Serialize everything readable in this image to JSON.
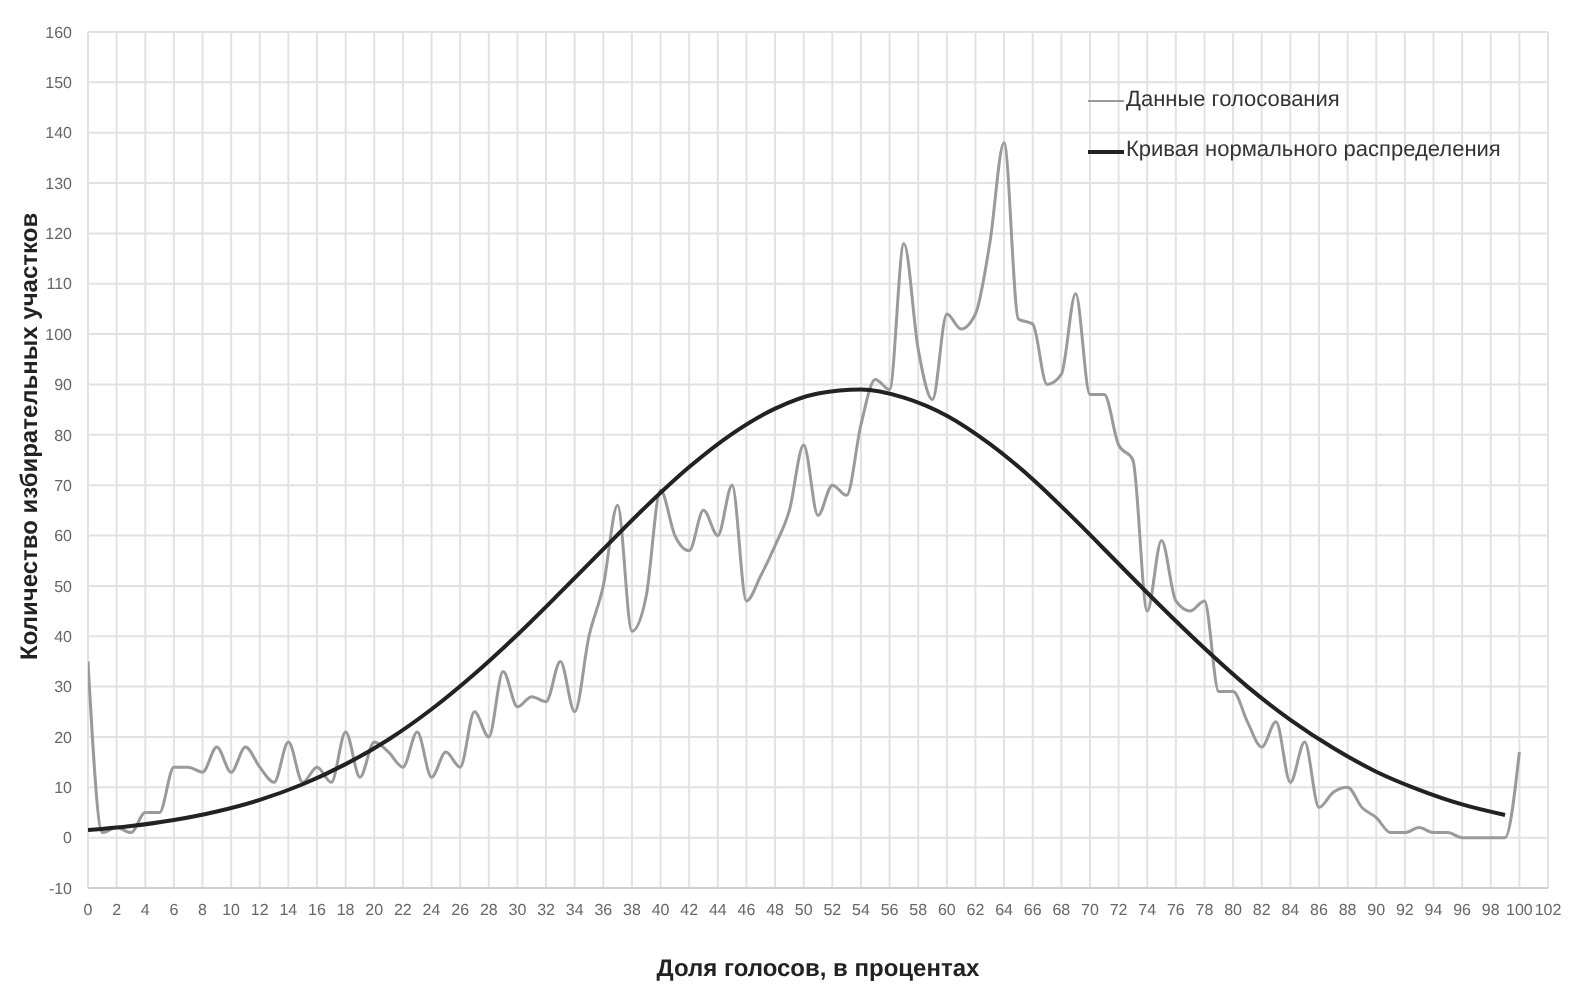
{
  "chart_data": {
    "type": "line",
    "xlabel": "Доля голосов, в процентах",
    "ylabel": "Количество избирательных участков",
    "series": [
      {
        "name": "Данные голосования",
        "color": "#9a9a9a",
        "x": [
          0,
          1,
          2,
          3,
          4,
          5,
          6,
          7,
          8,
          9,
          10,
          11,
          12,
          13,
          14,
          15,
          16,
          17,
          18,
          19,
          20,
          21,
          22,
          23,
          24,
          25,
          26,
          27,
          28,
          29,
          30,
          31,
          32,
          33,
          34,
          35,
          36,
          37,
          38,
          39,
          40,
          41,
          42,
          43,
          44,
          45,
          46,
          47,
          48,
          49,
          50,
          51,
          52,
          53,
          54,
          55,
          56,
          57,
          58,
          59,
          60,
          61,
          62,
          63,
          64,
          65,
          66,
          67,
          68,
          69,
          70,
          71,
          72,
          73,
          74,
          75,
          76,
          77,
          78,
          79,
          80,
          81,
          82,
          83,
          84,
          85,
          86,
          87,
          88,
          89,
          90,
          91,
          92,
          93,
          94,
          95,
          96,
          97,
          98,
          99,
          100
        ],
        "values": [
          35,
          1,
          2,
          1,
          5,
          5,
          14,
          14,
          13,
          18,
          13,
          18,
          14,
          11,
          19,
          11,
          14,
          11,
          21,
          12,
          19,
          17,
          14,
          21,
          12,
          17,
          14,
          25,
          20,
          33,
          26,
          28,
          27,
          35,
          25,
          40,
          50,
          66,
          41,
          48,
          69,
          60,
          57,
          65,
          60,
          70,
          47,
          52,
          58,
          65,
          78,
          64,
          70,
          68,
          82,
          91,
          89,
          118,
          97,
          87,
          104,
          101,
          104,
          118,
          138,
          103,
          102,
          90,
          92,
          108,
          88,
          88,
          78,
          75,
          45,
          59,
          47,
          45,
          47,
          29,
          29,
          23,
          18,
          23,
          11,
          19,
          6,
          9,
          10,
          6,
          4,
          1,
          1,
          2,
          1,
          1,
          0,
          0,
          0,
          0,
          17
        ]
      },
      {
        "name": "Кривая нормального распределения",
        "color": "#222222",
        "x": [
          0,
          3,
          6,
          9,
          12,
          15,
          18,
          21,
          24,
          27,
          30,
          33,
          36,
          39,
          42,
          45,
          48,
          51,
          54,
          57,
          60,
          63,
          66,
          69,
          72,
          75,
          78,
          81,
          84,
          87,
          90,
          93,
          96,
          99
        ],
        "values": [
          1.5,
          2.3,
          3.5,
          5.2,
          7.5,
          10.6,
          14.6,
          19.5,
          25.5,
          32.5,
          40.3,
          48.7,
          57.3,
          65.8,
          73.6,
          80.2,
          85.2,
          88.2,
          89,
          87.4,
          83.8,
          78.2,
          71.2,
          63,
          54.4,
          45.8,
          37.6,
          30,
          23.4,
          17.8,
          13.1,
          9.5,
          6.6,
          4.5
        ]
      }
    ],
    "xlim": [
      0,
      102
    ],
    "xticks": [
      0,
      2,
      4,
      6,
      8,
      10,
      12,
      14,
      16,
      18,
      20,
      22,
      24,
      26,
      28,
      30,
      32,
      34,
      36,
      38,
      40,
      42,
      44,
      46,
      48,
      50,
      52,
      54,
      56,
      58,
      60,
      62,
      64,
      66,
      68,
      70,
      72,
      74,
      76,
      78,
      80,
      82,
      84,
      86,
      88,
      90,
      92,
      94,
      96,
      98,
      100,
      102
    ],
    "ylim": [
      -10,
      160
    ],
    "yticks": [
      -10,
      0,
      10,
      20,
      30,
      40,
      50,
      60,
      70,
      80,
      90,
      100,
      110,
      120,
      130,
      140,
      150,
      160
    ],
    "grid": true,
    "legend": "top right",
    "marker": "none",
    "line_style": "solid"
  }
}
